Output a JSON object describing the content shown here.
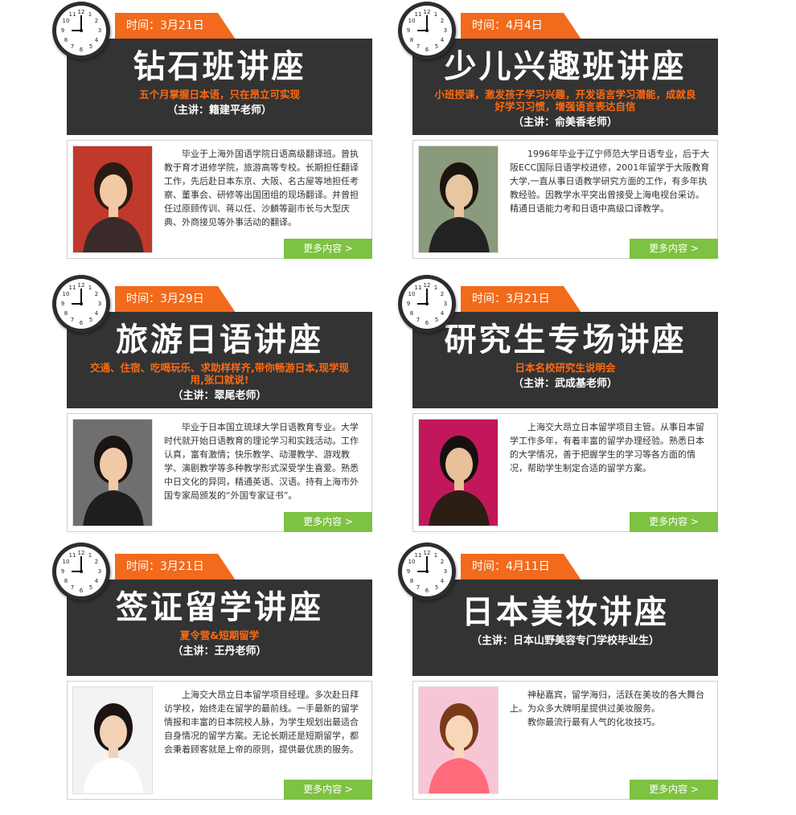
{
  "more_label": "更多内容 >",
  "colors": {
    "badge": "#f26a1b",
    "header": "#333333",
    "subtitle": "#ff6a10",
    "more": "#7dc242"
  },
  "cards": [
    {
      "date": "时间：3月21日",
      "title": "钻石班讲座",
      "subtitle": "五个月掌握日本语，只在昂立可实现",
      "speaker": "（主讲：籍建平老师）",
      "desc": [
        "毕业于上海外国语学院日语高级翻译班。曾执教于育才进修学院，旅游高等专校。长期担任翻译工作，先后赴日本东京、大阪、名古屋等地担任考察、董事会、研修等出国团组的现场翻译。并曾担任过原顾传训、蒋以任、沙麟等副市长与大型庆典、外商接见等外事活动的翻译。"
      ]
    },
    {
      "date": "时间：4月4日",
      "title": "少儿兴趣班讲座",
      "subtitle": "小班授课，激发孩子学习兴趣，开发语言学习潜能，成就良好学习习惯，增强语言表达自信",
      "speaker": "（主讲：俞美香老师）",
      "desc": [
        "1996年毕业于辽宁师范大学日语专业，后于大阪ECC国际日语学校进修，2001年留学于大阪教育大学,一直从事日语教学研究方面的工作，有多年执教经验。因教学水平突出曾接受上海电视台采访。精通日语能力考和日语中高级口译教学。"
      ]
    },
    {
      "date": "时间：3月29日",
      "title": "旅游日语讲座",
      "subtitle": "交通、住宿、吃喝玩乐、求助样样齐,带你畅游日本,现学现用,张口就说!",
      "speaker": "（主讲：翠尾老师）",
      "desc": [
        "毕业于日本国立琉球大学日语教育专业。大学时代就开始日语教育的理论学习和实践活动。工作认真，富有激情；快乐教学、动漫教学、游戏教学、演剧教学等多种教学形式深受学生喜爱。熟悉中日文化的异同，精通英语、汉语。持有上海市外国专家局颁发的“外国专家证书”。"
      ]
    },
    {
      "date": "时间：3月21日",
      "title": "研究生专场讲座",
      "subtitle": "日本名校研究生说明会",
      "speaker": "（主讲：武成基老师）",
      "desc": [
        "上海交大昂立日本留学项目主管。从事日本留学工作多年，有着丰富的留学办理经验。熟悉日本的大学情况，善于把握学生的学习等各方面的情况，帮助学生制定合适的留学方案。"
      ]
    },
    {
      "date": "时间：3月21日",
      "title": "签证留学讲座",
      "subtitle": "夏令营&短期留学",
      "speaker": "（主讲：王丹老师）",
      "desc": [
        "上海交大昂立日本留学项目经理。多次赴日拜访学校，始终走在留学的最前线。一手最新的留学情报和丰富的日本院校人脉，为学生规划出最适合自身情况的留学方案。无论长期还是短期留学，都会秉着顾客就是上帝的原则，提供最优质的服务。"
      ]
    },
    {
      "date": "时间：4月11日",
      "title": "日本美妆讲座",
      "subtitle": "",
      "speaker": "（主讲：日本山野美容专门学校毕业生）",
      "desc": [
        "神秘嘉宾，留学海归，活跃在美妆的各大舞台上。为众多大牌明星提供过美妆服务。",
        "教你最流行最有人气的化妆技巧。"
      ]
    }
  ]
}
